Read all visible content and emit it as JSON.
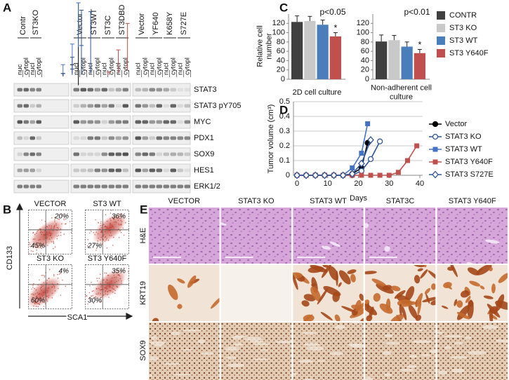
{
  "panel_labels": {
    "a": "A",
    "b": "B",
    "c": "C",
    "d": "D",
    "e": "E"
  },
  "blot": {
    "groups": [
      {
        "lanes": [
          "Contr",
          "ST3KO"
        ],
        "fractions": [
          "nuc",
          "cytopl",
          "nucl",
          "cytopl"
        ]
      },
      {
        "lanes": [
          "Vector",
          "ST3WT",
          "ST3C",
          "ST3DBD"
        ],
        "fractions": [
          "nucl",
          "cytopl",
          "nucl",
          "cytopl",
          "nucl",
          "cytopl",
          "nucl",
          "cytopl"
        ]
      },
      {
        "lanes": [
          "Vector",
          "YF640",
          "K658Y",
          "S727E"
        ],
        "fractions": [
          "nucl",
          "cytopl",
          "nucl",
          "cytopl",
          "nucl",
          "cytopl",
          "nucl",
          "cytopl"
        ]
      }
    ],
    "proteins": [
      "STAT3",
      "STAT3 pY705",
      "MYC",
      "PDX1",
      "SOX9",
      "HES1",
      "ERK1/2"
    ]
  },
  "flow": {
    "y_label": "CD133",
    "x_label": "SCA1",
    "plots": [
      {
        "title": "VECTOR",
        "upper_right": "20%",
        "lower_left": "45%"
      },
      {
        "title": "ST3 WT",
        "upper_right": "36%",
        "lower_left": "27%"
      },
      {
        "title": "ST3 KO",
        "upper_right": "4%",
        "lower_left": "60%"
      },
      {
        "title": "ST3 Y640F",
        "upper_right": "35%",
        "lower_left": "30%"
      }
    ]
  },
  "chart_data": [
    {
      "type": "bar",
      "ylabel": "Relative cell number",
      "categories": [
        "2D cell culture"
      ],
      "series": [
        {
          "name": "CONTR",
          "color": "#404040",
          "values": [
            123
          ],
          "errors": [
            13
          ]
        },
        {
          "name": "ST3 KO",
          "color": "#c9c9c9",
          "values": [
            125
          ],
          "errors": [
            10
          ]
        },
        {
          "name": "ST3 WT",
          "color": "#4a7ebb",
          "values": [
            117
          ],
          "errors": [
            10
          ]
        },
        {
          "name": "ST3 Y640F",
          "color": "#c0504d",
          "values": [
            92
          ],
          "errors": [
            8
          ]
        }
      ],
      "ylim": [
        0,
        140
      ],
      "yticks": [
        0,
        20,
        40,
        60,
        80,
        100,
        120
      ],
      "legend": "right",
      "p_value": "p<0.05",
      "significance": "*"
    },
    {
      "type": "bar",
      "categories": [
        "Non-adherent cell culture"
      ],
      "series": [
        {
          "color": "#404040",
          "values": [
            81
          ],
          "errors": [
            14
          ]
        },
        {
          "color": "#c9c9c9",
          "values": [
            84
          ],
          "errors": [
            10
          ]
        },
        {
          "color": "#4a7ebb",
          "values": [
            70
          ],
          "errors": [
            10
          ]
        },
        {
          "color": "#c0504d",
          "values": [
            56
          ],
          "errors": [
            8
          ]
        }
      ],
      "ylim": [
        0,
        140
      ],
      "yticks": [
        0,
        20,
        40,
        60,
        80,
        100,
        120
      ],
      "p_value": "p<0.01",
      "significance": "*"
    },
    {
      "type": "line",
      "xlabel": "Days",
      "ylabel": "Tumor volume (cm³)",
      "xlim": [
        0,
        40
      ],
      "xticks": [
        0,
        10,
        20,
        30,
        40
      ],
      "ylim": [
        0,
        0.5
      ],
      "yticks": [
        0,
        0.1,
        0.2,
        0.3,
        0.4,
        0.5
      ],
      "grid": true,
      "legend": "right",
      "series": [
        {
          "name": "Vector",
          "color": "#000000",
          "marker": "circle",
          "x": [
            0,
            3,
            6,
            9,
            12,
            15,
            18,
            21,
            23
          ],
          "values": [
            0,
            0,
            0,
            0,
            0,
            0,
            0.01,
            0.05,
            0.22
          ],
          "errors": [
            0,
            0,
            0,
            0,
            0,
            0,
            0.01,
            0.03,
            0.28
          ]
        },
        {
          "name": "STAT3 KO",
          "color": "#2f5597",
          "marker": "open-circle",
          "x": [
            0,
            3,
            6,
            9,
            12,
            15,
            18,
            21,
            24,
            27
          ],
          "values": [
            0,
            0,
            0,
            0,
            0,
            0,
            0,
            0.03,
            0.11,
            0.23
          ],
          "errors": [
            0,
            0,
            0,
            0,
            0,
            0,
            0,
            0.02,
            0.1,
            0.21
          ]
        },
        {
          "name": "STAT3 WT",
          "color": "#4472c4",
          "marker": "square",
          "x": [
            0,
            3,
            6,
            9,
            12,
            15,
            18,
            21,
            23
          ],
          "values": [
            0,
            0,
            0,
            0,
            0,
            0,
            0.05,
            0.15,
            0.35
          ],
          "errors": [
            0,
            0,
            0,
            0,
            0,
            0,
            0.03,
            0.07,
            0.15
          ]
        },
        {
          "name": "STAT3 Y640F",
          "color": "#c0504d",
          "marker": "square",
          "x": [
            0,
            3,
            6,
            9,
            12,
            15,
            18,
            21,
            24,
            27,
            30,
            33,
            36,
            39
          ],
          "values": [
            0,
            0,
            0,
            0,
            0,
            0,
            0,
            0,
            0,
            0,
            0,
            0.02,
            0.1,
            0.2
          ],
          "errors": [
            0,
            0,
            0,
            0,
            0,
            0,
            0,
            0,
            0,
            0,
            0,
            0.01,
            0.08,
            0.16
          ]
        },
        {
          "name": "STAT3 S727E",
          "color": "#2f5597",
          "marker": "open-diamond",
          "x": [
            0,
            3,
            6,
            9,
            12,
            15,
            18,
            21,
            24
          ],
          "values": [
            0,
            0,
            0,
            0,
            0,
            0,
            0.01,
            0.08,
            0.24
          ],
          "errors": [
            0,
            0,
            0,
            0,
            0,
            0,
            0.01,
            0.05,
            0.21
          ]
        }
      ]
    }
  ],
  "histology": {
    "columns": [
      "VECTOR",
      "STAT3 KO",
      "STAT3 WT",
      "STAT3C",
      "STAT3 Y640F"
    ],
    "rows": [
      "H&E",
      "KRT19",
      "SOX9"
    ]
  }
}
